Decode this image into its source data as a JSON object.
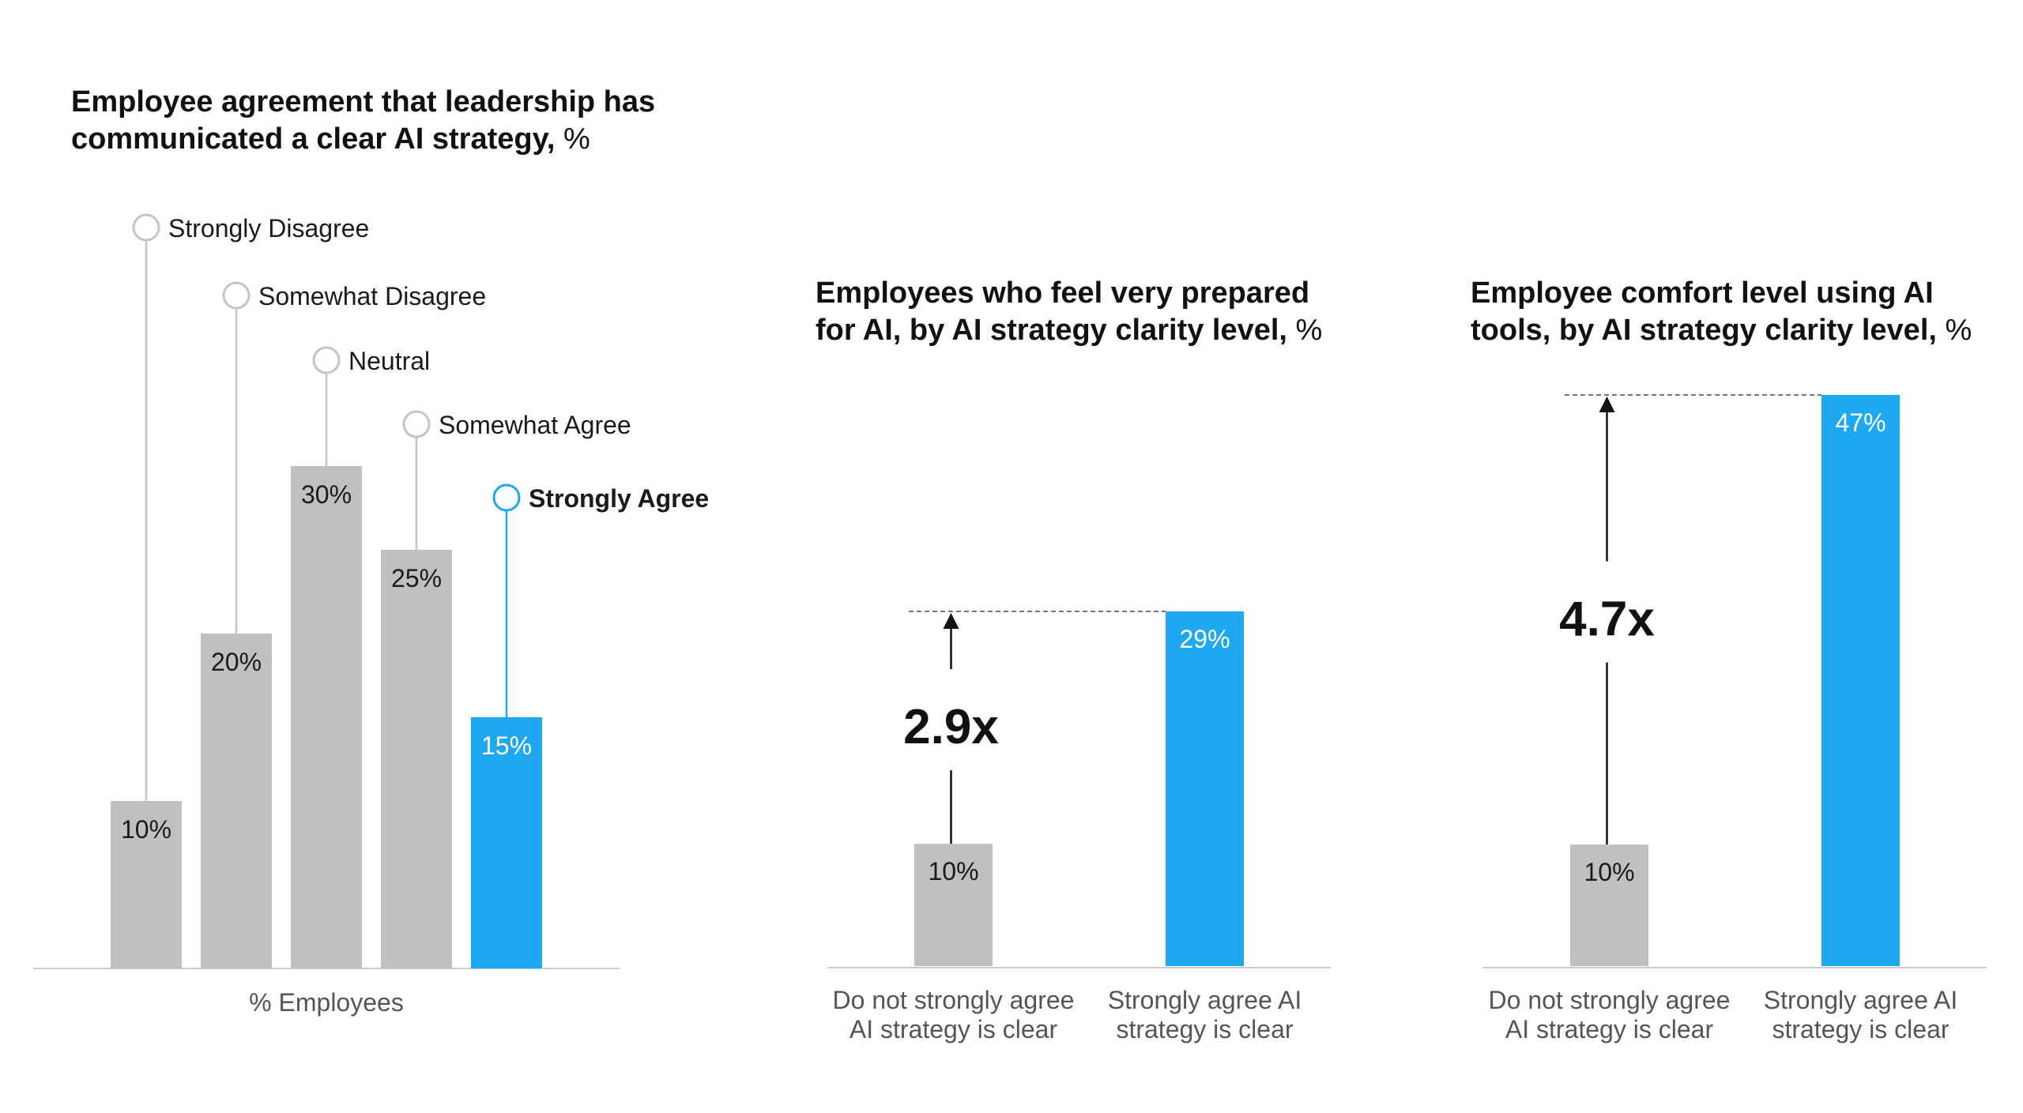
{
  "chart_data": [
    {
      "type": "bar",
      "title_lines": [
        "Employee agreement that leadership has",
        "communicated a clear AI strategy,"
      ],
      "title_unit": "%",
      "categories": [
        "Strongly Disagree",
        "Somewhat Disagree",
        "Neutral",
        "Somewhat Agree",
        "Strongly Agree"
      ],
      "values": [
        10,
        20,
        30,
        25,
        15
      ],
      "value_labels": [
        "10%",
        "20%",
        "30%",
        "25%",
        "15%"
      ],
      "highlight_index": 4,
      "xlabel": "% Employees",
      "ylim": [
        0,
        30
      ]
    },
    {
      "type": "bar",
      "title_lines": [
        "Employees who feel very prepared",
        "for AI, by AI strategy clarity level,"
      ],
      "title_unit": "%",
      "categories": [
        [
          "Do not strongly agree",
          "AI strategy is clear"
        ],
        [
          "Strongly agree AI",
          "strategy is clear"
        ]
      ],
      "values": [
        10,
        29
      ],
      "value_labels": [
        "10%",
        "29%"
      ],
      "highlight_index": 1,
      "multiplier_label": "2.9x",
      "ylim": [
        0,
        29
      ]
    },
    {
      "type": "bar",
      "title_lines": [
        "Employee comfort level using AI",
        "tools, by AI strategy clarity level,"
      ],
      "title_unit": "%",
      "categories": [
        [
          "Do not strongly agree",
          "AI strategy is clear"
        ],
        [
          "Strongly agree AI",
          "strategy is clear"
        ]
      ],
      "values": [
        10,
        47
      ],
      "value_labels": [
        "10%",
        "47%"
      ],
      "highlight_index": 1,
      "multiplier_label": "4.7x",
      "ylim": [
        0,
        47
      ]
    }
  ],
  "colors": {
    "gray_bar": "#c0c0c0",
    "accent_bar": "#1ea8ef",
    "leader_line": "#c4c4c4",
    "axis": "#cccccc",
    "text": "#1a1a1a",
    "muted_text": "#555555"
  }
}
